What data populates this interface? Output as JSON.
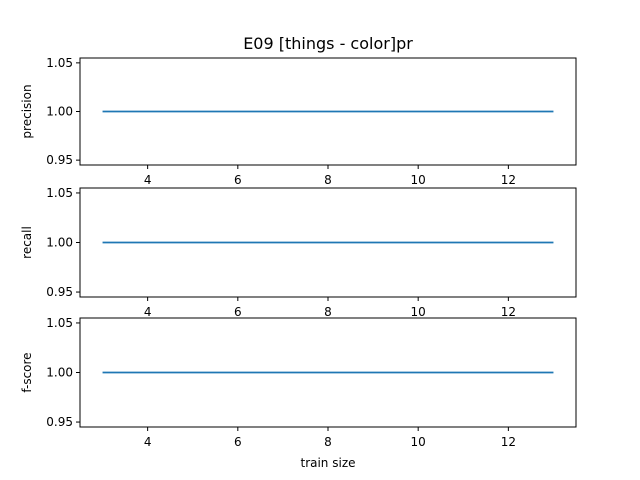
{
  "chart_data": {
    "type": "line",
    "title": "E09 [things - color]pr",
    "xlabel": "train size",
    "x": [
      3,
      4,
      5,
      6,
      7,
      8,
      9,
      10,
      11,
      12,
      13
    ],
    "xlim": [
      2.5,
      13.5
    ],
    "xticks": [
      4,
      6,
      8,
      10,
      12
    ],
    "line_color": "#1f77b4",
    "grid": false,
    "panels": [
      {
        "ylabel": "precision",
        "ylim": [
          0.945,
          1.055
        ],
        "yticks": [
          0.95,
          1.0,
          1.05
        ],
        "ytick_labels": [
          "0.95",
          "1.00",
          "1.05"
        ],
        "values": [
          1,
          1,
          1,
          1,
          1,
          1,
          1,
          1,
          1,
          1,
          1
        ]
      },
      {
        "ylabel": "recall",
        "ylim": [
          0.945,
          1.055
        ],
        "yticks": [
          0.95,
          1.0,
          1.05
        ],
        "ytick_labels": [
          "0.95",
          "1.00",
          "1.05"
        ],
        "values": [
          1,
          1,
          1,
          1,
          1,
          1,
          1,
          1,
          1,
          1,
          1
        ]
      },
      {
        "ylabel": "f-score",
        "ylim": [
          0.945,
          1.055
        ],
        "yticks": [
          0.95,
          1.0,
          1.05
        ],
        "ytick_labels": [
          "0.95",
          "1.00",
          "1.05"
        ],
        "values": [
          1,
          1,
          1,
          1,
          1,
          1,
          1,
          1,
          1,
          1,
          1
        ]
      }
    ]
  }
}
